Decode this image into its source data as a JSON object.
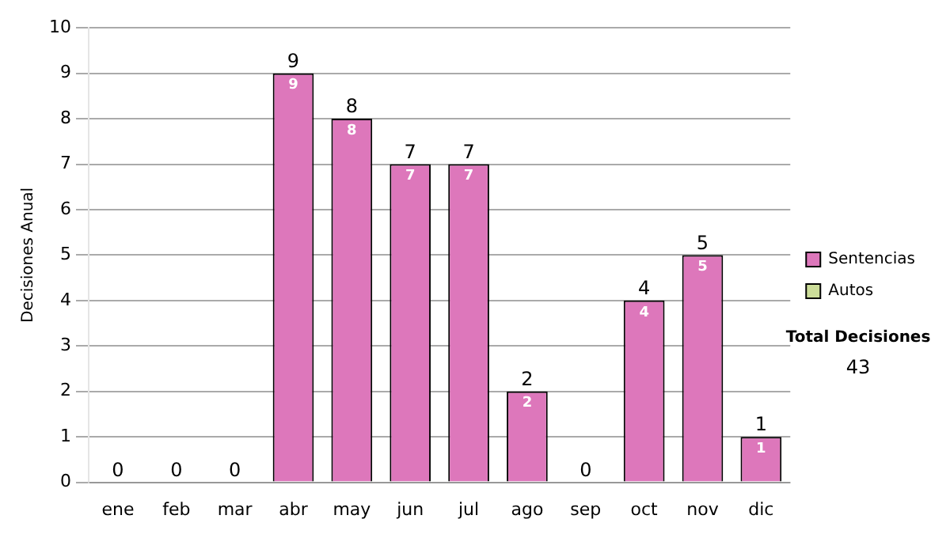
{
  "chart_data": {
    "type": "bar",
    "ylabel": "Decisiones Anual",
    "categories": [
      "ene",
      "feb",
      "mar",
      "abr",
      "may",
      "jun",
      "jul",
      "ago",
      "sep",
      "oct",
      "nov",
      "dic"
    ],
    "series": [
      {
        "name": "Sentencias",
        "color": "#dd77bb",
        "values": [
          0,
          0,
          0,
          9,
          8,
          7,
          7,
          2,
          0,
          4,
          5,
          1
        ],
        "value_labels": [
          null,
          null,
          null,
          "9",
          "8",
          "7",
          "7",
          "2",
          null,
          "4",
          "5",
          "1"
        ]
      },
      {
        "name": "Autos",
        "color": "#ccdd99",
        "values": [
          0,
          0,
          0,
          0,
          0,
          0,
          0,
          0,
          0,
          0,
          0,
          0
        ]
      }
    ],
    "stacked": true,
    "totals": [
      "0",
      "0",
      "0",
      "9",
      "8",
      "7",
      "7",
      "2",
      "0",
      "4",
      "5",
      "1"
    ],
    "ylim": [
      0,
      10
    ],
    "yticks": [
      0,
      1,
      2,
      3,
      4,
      5,
      6,
      7,
      8,
      9,
      10
    ],
    "grid": "y",
    "legend": "right",
    "annotations": [
      "Total Decisiones",
      "43"
    ]
  }
}
